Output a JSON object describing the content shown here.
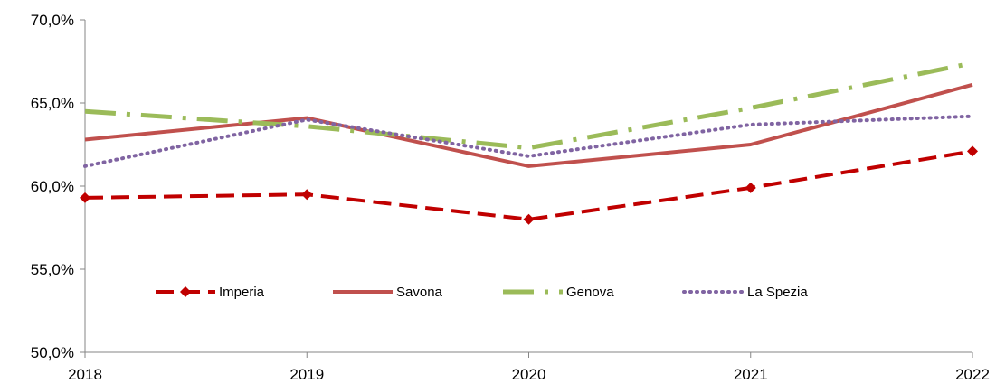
{
  "chart_data": {
    "type": "line",
    "title": "",
    "xlabel": "",
    "ylabel": "",
    "x": [
      "2018",
      "2019",
      "2020",
      "2021",
      "2022"
    ],
    "ylim": [
      50,
      70
    ],
    "yticks": [
      50,
      55,
      60,
      65,
      70
    ],
    "ytick_labels": [
      "50,0%",
      "55,0%",
      "60,0%",
      "65,0%",
      "70,0%"
    ],
    "grid": false,
    "legend_position": "bottom-center inside plot",
    "series": [
      {
        "name": "Imperia",
        "values": [
          59.3,
          59.5,
          58.0,
          59.9,
          62.1
        ],
        "color": "#c00000",
        "style": "dashed with diamond markers"
      },
      {
        "name": "Savona",
        "values": [
          62.8,
          64.1,
          61.2,
          62.5,
          66.1
        ],
        "color": "#c0504d",
        "style": "solid"
      },
      {
        "name": "Genova",
        "values": [
          64.5,
          63.6,
          62.3,
          64.7,
          67.4
        ],
        "color": "#9bbb59",
        "style": "long dash dot"
      },
      {
        "name": "La Spezia",
        "values": [
          61.2,
          64.0,
          61.8,
          63.7,
          64.2
        ],
        "color": "#8064a2",
        "style": "dotted"
      }
    ]
  }
}
